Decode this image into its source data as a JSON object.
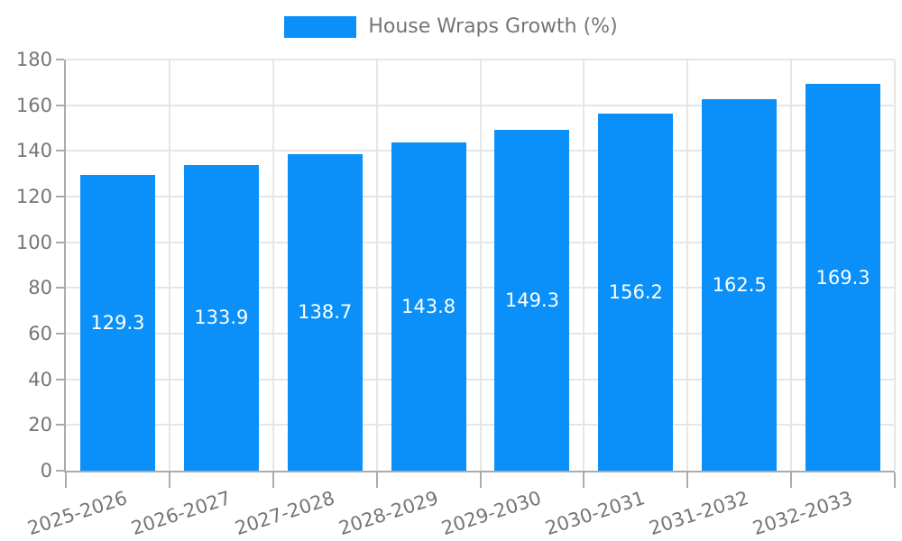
{
  "colors": {
    "bar": "#0a90f8",
    "grid": "#e6e6e6",
    "axis": "#ababab",
    "tick_text": "#757575",
    "value_text": "#ffffff",
    "background": "#ffffff"
  },
  "chart_data": {
    "type": "bar",
    "title": "",
    "legend": "House Wraps Growth (%)",
    "legend_position": "top-center",
    "categories": [
      "2025-2026",
      "2026-2027",
      "2027-2028",
      "2028-2029",
      "2029-2030",
      "2030-2031",
      "2031-2032",
      "2032-2033"
    ],
    "values": [
      129.3,
      133.9,
      138.7,
      143.8,
      149.3,
      156.2,
      162.5,
      169.3
    ],
    "value_labels": [
      "129.3",
      "133.9",
      "138.7",
      "143.8",
      "149.3",
      "156.2",
      "162.5",
      "169.3"
    ],
    "value_label_position": "inside-middle",
    "xlabel": "",
    "ylabel": "",
    "ylim": [
      0,
      180
    ],
    "ytick_step": 20,
    "ytick_labels": [
      "0",
      "20",
      "40",
      "60",
      "80",
      "100",
      "120",
      "140",
      "160",
      "180"
    ],
    "grid": true,
    "x_tick_label_rotation_deg": -18
  }
}
